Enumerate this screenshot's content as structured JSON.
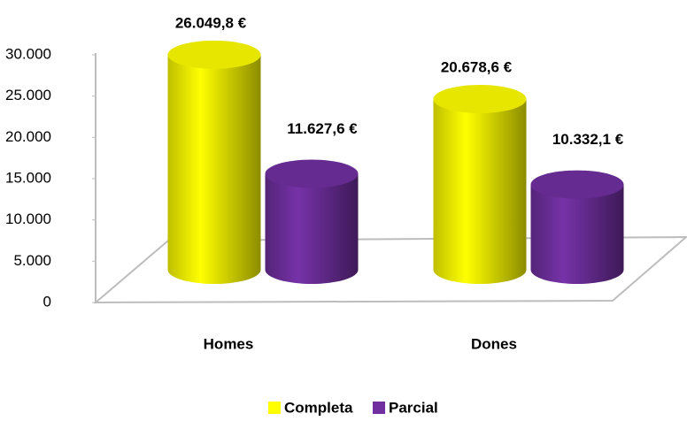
{
  "chart_data": {
    "type": "bar",
    "categories": [
      "Homes",
      "Dones"
    ],
    "series": [
      {
        "name": "Completa",
        "color": "#ffff00",
        "values": [
          26049.8,
          20678.6
        ],
        "value_labels": [
          "26.049,8 €",
          "20.678,6 €"
        ]
      },
      {
        "name": "Parcial",
        "color": "#7030a0",
        "values": [
          11627.6,
          10332.1
        ],
        "value_labels": [
          "11.627,6 €",
          "10.332,1 €"
        ]
      }
    ],
    "ylim": [
      0,
      30000
    ],
    "yticks": [
      0,
      {
        "value": 5000,
        "label": "5.000"
      },
      {
        "value": 10000,
        "label": "10.000"
      },
      {
        "value": 15000,
        "label": "15.000"
      },
      {
        "value": 20000,
        "label": "20.000"
      },
      {
        "value": 25000,
        "label": "25.000"
      },
      {
        "value": 30000,
        "label": "30.000"
      }
    ],
    "legend": "bottom"
  }
}
